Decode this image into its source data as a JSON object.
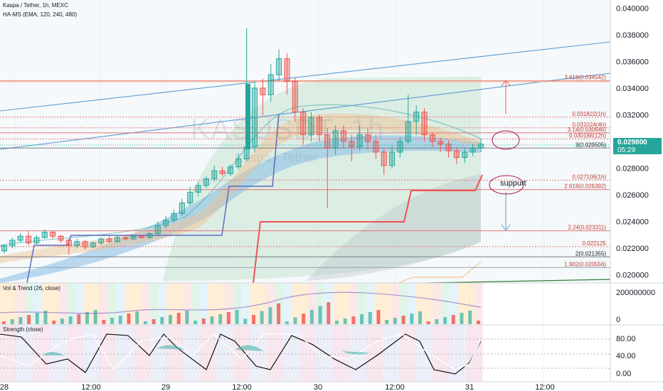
{
  "header": {
    "symbol": "Kaspa / Tether, 1h, MEXC",
    "indicator": "HA-MS (EMA, 120, 240, 480)",
    "vol_title": "Vol & Trend (26, close)",
    "strength_title": "Strength (close)"
  },
  "watermark": {
    "ticker": "KASUSDT, 1h",
    "name": "Kaspa / Tether"
  },
  "price_badge": {
    "price": "0.029800",
    "countdown": "05:29",
    "color": "#26a69a"
  },
  "note_label": "suppurt",
  "colors": {
    "up": "#26a69a",
    "down": "#ef5350",
    "trend": "#5b9bd5",
    "fib": "#e57373"
  },
  "chart_data": {
    "type": "candlestick",
    "y_axis": {
      "ticks": [
        "0.040000",
        "0.038000",
        "0.036000",
        "0.034000",
        "0.032000",
        "0.030000",
        "0.028000",
        "0.026000",
        "0.024000",
        "0.022000",
        "0.020000"
      ],
      "ylim": [
        0.0194,
        0.0406
      ]
    },
    "x_axis": {
      "ticks": [
        "28",
        "12:00",
        "29",
        "12:00",
        "30",
        "12:00",
        "31",
        "12:00"
      ]
    },
    "levels": [
      {
        "label": "3.618(0.034542)",
        "value": 0.034542
      },
      {
        "label": "0.031822(1h)",
        "value": 0.031822
      },
      {
        "label": "0.031024(4h)",
        "value": 0.031024
      },
      {
        "label": "3.14(0.030646)",
        "value": 0.030646
      },
      {
        "label": "0.030188(12h)",
        "value": 0.030188
      },
      {
        "label": "3(0.029505)",
        "value": 0.029505
      },
      {
        "label": "0.027106(1h)",
        "value": 0.027106
      },
      {
        "label": "2.618(0.026392)",
        "value": 0.026392
      },
      {
        "label": "2.24(0.023311)",
        "value": 0.023311
      },
      {
        "label": "0.022125",
        "value": 0.022125
      },
      {
        "label": "2(0.021355)",
        "value": 0.021355
      },
      {
        "label": "1.902(0.020556)",
        "value": 0.020556
      }
    ],
    "candles": [
      [
        0.0218,
        0.0222,
        0.0216,
        0.0223
      ],
      [
        0.0222,
        0.0226,
        0.022,
        0.0228
      ],
      [
        0.0226,
        0.0229,
        0.0224,
        0.0231
      ],
      [
        0.0229,
        0.0224,
        0.0222,
        0.0233
      ],
      [
        0.0224,
        0.0228,
        0.0223,
        0.023
      ],
      [
        0.0228,
        0.0232,
        0.0227,
        0.0234
      ],
      [
        0.0232,
        0.0229,
        0.0227,
        0.0233
      ],
      [
        0.0229,
        0.0226,
        0.0224,
        0.023
      ],
      [
        0.0226,
        0.0222,
        0.0215,
        0.0227
      ],
      [
        0.0222,
        0.0225,
        0.022,
        0.0227
      ],
      [
        0.0225,
        0.0221,
        0.0219,
        0.0226
      ],
      [
        0.0221,
        0.0224,
        0.022,
        0.0225
      ],
      [
        0.0224,
        0.0227,
        0.0222,
        0.0228
      ],
      [
        0.0227,
        0.0225,
        0.0224,
        0.0229
      ],
      [
        0.0225,
        0.0228,
        0.0224,
        0.023
      ],
      [
        0.0228,
        0.0227,
        0.0226,
        0.0229
      ],
      [
        0.0227,
        0.0229,
        0.0226,
        0.023
      ],
      [
        0.0229,
        0.0228,
        0.0227,
        0.023
      ],
      [
        0.0228,
        0.0231,
        0.0227,
        0.0232
      ],
      [
        0.0231,
        0.0237,
        0.023,
        0.024
      ],
      [
        0.0237,
        0.0241,
        0.0235,
        0.0244
      ],
      [
        0.0241,
        0.0246,
        0.0239,
        0.0249
      ],
      [
        0.0246,
        0.0254,
        0.0244,
        0.0257
      ],
      [
        0.0254,
        0.0262,
        0.0252,
        0.0266
      ],
      [
        0.0262,
        0.0267,
        0.0259,
        0.027
      ],
      [
        0.0267,
        0.0272,
        0.0265,
        0.0274
      ],
      [
        0.0272,
        0.0278,
        0.027,
        0.0282
      ],
      [
        0.0278,
        0.0276,
        0.0274,
        0.0281
      ],
      [
        0.0276,
        0.0281,
        0.0274,
        0.0283
      ],
      [
        0.0281,
        0.0287,
        0.0279,
        0.0291
      ],
      [
        0.0287,
        0.0296,
        0.0285,
        0.0385
      ],
      [
        0.0296,
        0.034,
        0.0292,
        0.0345
      ],
      [
        0.034,
        0.0335,
        0.032,
        0.0347
      ],
      [
        0.0335,
        0.035,
        0.033,
        0.0358
      ],
      [
        0.035,
        0.0362,
        0.0345,
        0.0369
      ],
      [
        0.0362,
        0.0345,
        0.0335,
        0.0366
      ],
      [
        0.0345,
        0.0322,
        0.0315,
        0.0348
      ],
      [
        0.0322,
        0.0305,
        0.0298,
        0.0325
      ],
      [
        0.0305,
        0.0318,
        0.03,
        0.0322
      ],
      [
        0.0318,
        0.0305,
        0.03,
        0.032
      ],
      [
        0.0305,
        0.0295,
        0.025,
        0.031
      ],
      [
        0.0295,
        0.0308,
        0.029,
        0.0312
      ],
      [
        0.0308,
        0.03,
        0.0295,
        0.0312
      ],
      [
        0.03,
        0.0296,
        0.0285,
        0.0305
      ],
      [
        0.0296,
        0.0305,
        0.0293,
        0.0312
      ],
      [
        0.0305,
        0.03,
        0.0294,
        0.031
      ],
      [
        0.03,
        0.0292,
        0.0287,
        0.0305
      ],
      [
        0.0292,
        0.0282,
        0.0275,
        0.0295
      ],
      [
        0.0282,
        0.0292,
        0.028,
        0.0297
      ],
      [
        0.0292,
        0.03,
        0.0288,
        0.0303
      ],
      [
        0.03,
        0.0315,
        0.0298,
        0.0335
      ],
      [
        0.0315,
        0.0322,
        0.0305,
        0.0327
      ],
      [
        0.0322,
        0.0305,
        0.03,
        0.0325
      ],
      [
        0.0305,
        0.03,
        0.0296,
        0.0307
      ],
      [
        0.03,
        0.0298,
        0.0292,
        0.0303
      ],
      [
        0.0298,
        0.0293,
        0.0288,
        0.0301
      ],
      [
        0.0293,
        0.0288,
        0.0283,
        0.0296
      ],
      [
        0.0288,
        0.0292,
        0.0284,
        0.0295
      ],
      [
        0.0292,
        0.0295,
        0.0289,
        0.0298
      ],
      [
        0.0295,
        0.0298,
        0.0292,
        0.0302
      ]
    ]
  },
  "vol_axis": {
    "top": "200000000",
    "bottom": "0"
  },
  "strength_axis": [
    "80.00",
    "40.00",
    "0.00"
  ]
}
